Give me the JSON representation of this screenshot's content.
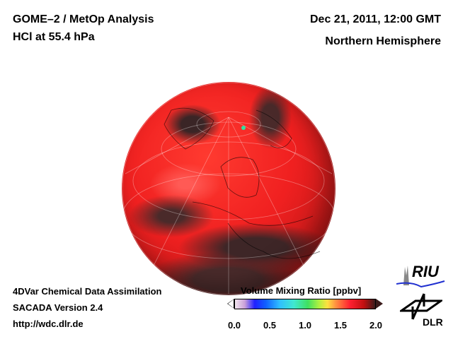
{
  "header": {
    "title": "GOME–2 / MetOp Analysis",
    "subtitle": "HCl at 55.4 hPa",
    "datetime": "Dec 21, 2011, 12:00 GMT",
    "region": "Northern Hemisphere"
  },
  "footer": {
    "line1": "4DVar Chemical Data Assimilation",
    "line2": "SACADA Version 2.4",
    "line3": "http://wdc.dlr.de"
  },
  "colorbar": {
    "title": "Volume Mixing Ratio [ppbv]",
    "ticks": [
      "0.0",
      "0.5",
      "1.0",
      "1.5",
      "2.0"
    ],
    "range": [
      0.0,
      2.0
    ]
  },
  "logos": {
    "riu": "RIU",
    "dlr": "DLR"
  }
}
